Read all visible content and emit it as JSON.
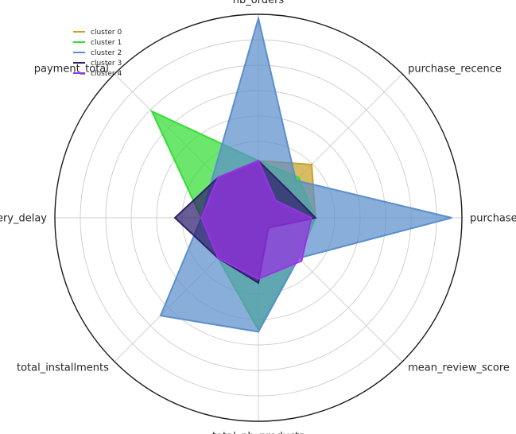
{
  "chart_data": {
    "type": "radar",
    "axes": [
      "nb_orders",
      "purchase_recence",
      "purchase_frequency",
      "mean_review_score",
      "total_nb_products",
      "total_installments",
      "mean_delivery_delay",
      "payment_total"
    ],
    "rlim": [
      0,
      1
    ],
    "grid": true,
    "legend_position": "top-left",
    "series": [
      {
        "name": "cluster 0",
        "color": "#c9a227",
        "values": [
          0.28,
          0.37,
          0.28,
          0.28,
          0.28,
          0.28,
          0.28,
          0.28
        ]
      },
      {
        "name": "cluster 1",
        "color": "#33dd33",
        "values": [
          0.28,
          0.28,
          0.28,
          0.28,
          0.55,
          0.28,
          0.28,
          0.74
        ]
      },
      {
        "name": "cluster 2",
        "color": "#5b8fcc",
        "values": [
          0.98,
          0.26,
          0.95,
          0.28,
          0.56,
          0.68,
          0.28,
          0.31
        ]
      },
      {
        "name": "cluster 3",
        "color": "#2e1f6b",
        "values": [
          0.28,
          0.2,
          0.28,
          0.07,
          0.32,
          0.28,
          0.41,
          0.28
        ]
      },
      {
        "name": "cluster 4",
        "color": "#9933e6",
        "values": [
          0.28,
          0.12,
          0.26,
          0.3,
          0.3,
          0.28,
          0.28,
          0.28
        ]
      }
    ]
  }
}
